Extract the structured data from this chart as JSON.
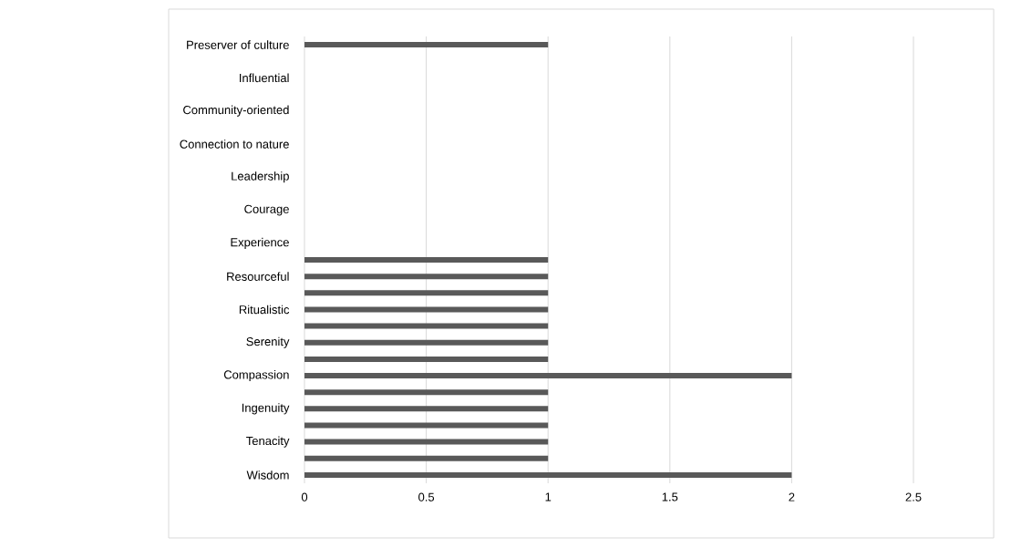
{
  "chart_data": {
    "type": "bar",
    "orientation": "horizontal",
    "categories": [
      "Preserver of culture",
      null,
      "Influential",
      null,
      "Community-oriented",
      null,
      "Connection to nature",
      null,
      "Leadership",
      null,
      "Courage",
      null,
      "Experience",
      null,
      "Resourceful",
      null,
      "Ritualistic",
      null,
      "Serenity",
      null,
      "Compassion",
      null,
      "Ingenuity",
      null,
      "Tenacity",
      null,
      "Wisdom"
    ],
    "values": [
      1,
      0,
      0,
      0,
      0,
      0,
      0,
      0,
      0,
      0,
      0,
      0,
      0,
      1,
      1,
      1,
      1,
      1,
      1,
      1,
      2,
      1,
      1,
      1,
      1,
      1,
      2
    ],
    "color": "#595959",
    "xlim": [
      0,
      2.5
    ],
    "xticks": [
      0,
      0.5,
      1,
      1.5,
      2,
      2.5
    ],
    "grid": "x"
  }
}
